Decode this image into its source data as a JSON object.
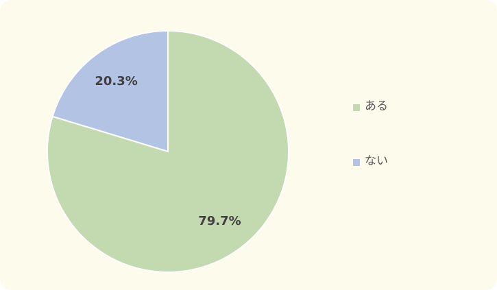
{
  "chart_data": {
    "type": "pie",
    "categories": [
      "ある",
      "ない"
    ],
    "values": [
      79.7,
      20.3
    ],
    "value_labels": [
      "79.7%",
      "20.3%"
    ],
    "colors": [
      "#c3dab0",
      "#b3c3e3"
    ],
    "legend": "right"
  }
}
